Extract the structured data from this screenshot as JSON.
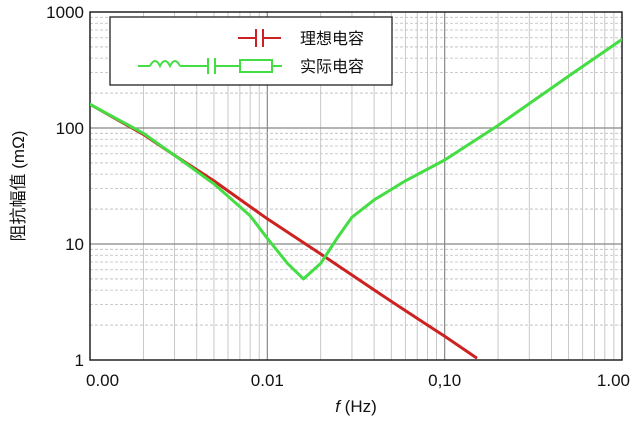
{
  "chart_data": {
    "type": "line",
    "scale": {
      "x": "log",
      "y": "log"
    },
    "xlim": [
      0.001,
      1.0
    ],
    "ylim": [
      1,
      1000
    ],
    "xlabel_prefix": "f",
    "xlabel_suffix": " (Hz)",
    "ylabel": "阻抗幅值 (mΩ)",
    "x_ticks": [
      {
        "value": 0.001,
        "label": "0.00"
      },
      {
        "value": 0.01,
        "label": "0.01"
      },
      {
        "value": 0.1,
        "label": "0,10"
      },
      {
        "value": 1.0,
        "label": "1.00"
      }
    ],
    "y_ticks": [
      {
        "value": 1,
        "label": "1"
      },
      {
        "value": 10,
        "label": "10"
      },
      {
        "value": 100,
        "label": "100"
      },
      {
        "value": 1000,
        "label": "1000"
      }
    ],
    "grid": true,
    "legend_position": "top-left",
    "series": [
      {
        "name": "理想电容",
        "color": "#cc2222",
        "x": [
          0.001,
          0.002,
          0.003,
          0.005,
          0.008,
          0.01,
          0.02,
          0.03,
          0.05,
          0.08,
          0.1,
          0.15
        ],
        "y": [
          160,
          88,
          58,
          35,
          21,
          16.5,
          8.2,
          5.4,
          3.2,
          2.0,
          1.6,
          1.05
        ]
      },
      {
        "name": "实际电容",
        "color": "#44dd44",
        "x": [
          0.001,
          0.002,
          0.003,
          0.005,
          0.008,
          0.01,
          0.013,
          0.016,
          0.02,
          0.025,
          0.03,
          0.04,
          0.06,
          0.1,
          0.2,
          0.5,
          1.0
        ],
        "y": [
          160,
          90,
          58,
          33,
          17.5,
          11.2,
          6.8,
          5.0,
          6.8,
          11.5,
          17,
          24,
          35,
          53,
          105,
          280,
          580
        ]
      }
    ]
  }
}
